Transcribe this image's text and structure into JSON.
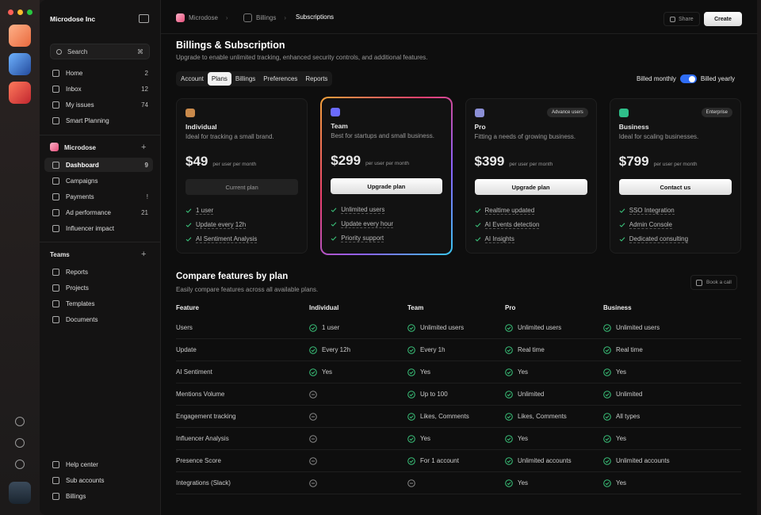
{
  "app": {
    "workspace": "Microdose Inc",
    "search": "Search",
    "search_shortcut": "⌘"
  },
  "nav": [
    {
      "label": "Home",
      "badge": 2
    },
    {
      "label": "Inbox",
      "badge": 12
    },
    {
      "label": "My issues",
      "badge": 74
    },
    {
      "label": "Smart Planning"
    }
  ],
  "workspace_section": {
    "title": "Microdose",
    "items": [
      {
        "label": "Dashboard",
        "badge": 9
      },
      {
        "label": "Campaigns"
      },
      {
        "label": "Payments",
        "badge": "!"
      },
      {
        "label": "Ad performance",
        "badge": 21
      },
      {
        "label": "Influencer impact"
      }
    ],
    "active": 0
  },
  "teams": {
    "title": "Teams",
    "items": [
      "Reports",
      "Projects",
      "Templates",
      "Documents"
    ]
  },
  "footer_nav": [
    "Help center",
    "Sub accounts",
    "Billings"
  ],
  "breadcrumb": [
    "Microdose",
    "Billings",
    "Subscriptions"
  ],
  "header_actions": {
    "share": "Share",
    "create": "Create"
  },
  "page": {
    "title": "Billings & Subscription",
    "subtitle": "Upgrade to enable unlimited tracking, enhanced security controls, and additional features."
  },
  "tabs": {
    "items": [
      "Account",
      "Plans",
      "Billings",
      "Preferences",
      "Reports"
    ],
    "active": 1
  },
  "billing_toggle": {
    "monthly": "Billed monthly",
    "yearly": "Billed yearly",
    "yearly_on": true
  },
  "plans": [
    {
      "name": "Individual",
      "description": "Ideal for tracking a small brand.",
      "price": "$49",
      "unit": "per user per month",
      "button": "Current plan",
      "current": true,
      "color": "#c98a4b",
      "features": [
        "1 user",
        "Update every 12h",
        "AI Sentiment Analysis"
      ]
    },
    {
      "name": "Team",
      "description": "Best for startups and small business.",
      "price": "$299",
      "unit": "per user per month",
      "button": "Upgrade plan",
      "featured": true,
      "color": "#6b6bff",
      "features": [
        "Unlimited users",
        "Update every hour",
        "Priority support"
      ]
    },
    {
      "name": "Pro",
      "badge": "Advance users",
      "description": "Fitting a needs of growing business.",
      "price": "$399",
      "unit": "per user per month",
      "button": "Upgrade plan",
      "color": "#8b8fd6",
      "features": [
        "Realtime updated",
        "AI Events detection",
        "AI Insights"
      ]
    },
    {
      "name": "Business",
      "badge": "Enterprise",
      "description": "Ideal for scaling businesses.",
      "price": "$799",
      "unit": "per user per month",
      "button": "Contact us",
      "color": "#2fbf8a",
      "features": [
        "SSO Integration",
        "Admin Console",
        "Dedicated consulting"
      ]
    }
  ],
  "compare": {
    "title": "Compare features by plan",
    "subtitle": "Easily compare features across all available plans.",
    "action": "Book a call",
    "columns": [
      "Feature",
      "Individual",
      "Team",
      "Pro",
      "Business"
    ],
    "rows": [
      [
        "Users",
        "1 user",
        "Unlimited users",
        "Unlimited users",
        "Unlimited users"
      ],
      [
        "Update",
        "Every 12h",
        "Every 1h",
        "Real time",
        "Real time"
      ],
      [
        "AI Sentiment",
        "Yes",
        "Yes",
        "Yes",
        "Yes"
      ],
      [
        "Mentions Volume",
        null,
        "Up to 100",
        "Unlimited",
        "Unlimited"
      ],
      [
        "Engagement tracking",
        null,
        "Likes, Comments",
        "Likes, Comments",
        "All types"
      ],
      [
        "Influencer Analysis",
        null,
        "Yes",
        "Yes",
        "Yes"
      ],
      [
        "Presence Score",
        null,
        "For 1 account",
        "Unlimited accounts",
        "Unlimited accounts"
      ],
      [
        "Integrations (Slack)",
        null,
        null,
        "Yes",
        "Yes"
      ]
    ]
  }
}
